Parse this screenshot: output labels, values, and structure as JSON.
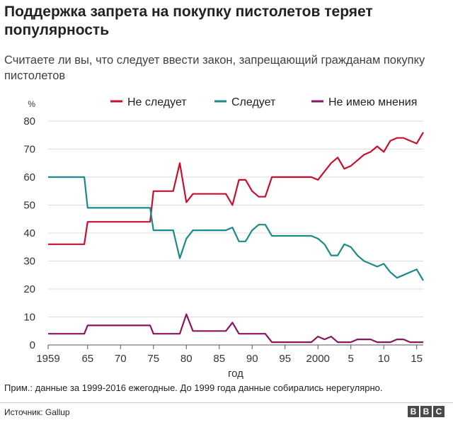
{
  "header": {
    "title": "Поддержка запрета на покупку пистолетов теряет популярность",
    "subtitle": "Считаете ли вы, что следует ввести закон, запрещающий гражданам покупку пистолетов"
  },
  "footer": {
    "note": "Прим.: данные за 1999-2016 ежегодные. До 1999 года данные собирались нерегулярно.",
    "source": "Источник: Gallup",
    "logo_letters": [
      "B",
      "B",
      "C"
    ]
  },
  "chart_data": {
    "type": "line",
    "unit_label": "%",
    "xlabel": "год",
    "ylim": [
      0,
      80
    ],
    "yticks": [
      0,
      10,
      20,
      30,
      40,
      50,
      60,
      70,
      80
    ],
    "xlim": [
      1959,
      2016
    ],
    "xticks": [
      {
        "value": 1959,
        "label": "1959"
      },
      {
        "value": 1965,
        "label": "65"
      },
      {
        "value": 1970,
        "label": "70"
      },
      {
        "value": 1975,
        "label": "75"
      },
      {
        "value": 1980,
        "label": "80"
      },
      {
        "value": 1985,
        "label": "85"
      },
      {
        "value": 1990,
        "label": "90"
      },
      {
        "value": 1995,
        "label": "95"
      },
      {
        "value": 2000,
        "label": "2000"
      },
      {
        "value": 2005,
        "label": "5"
      },
      {
        "value": 2010,
        "label": "10"
      },
      {
        "value": 2015,
        "label": "15"
      }
    ],
    "grid": true,
    "legend_position": "top",
    "series": [
      {
        "name": "Не следует",
        "color": "#c8102e",
        "points": [
          [
            1959,
            36
          ],
          [
            1964.5,
            36
          ],
          [
            1965,
            44
          ],
          [
            1974.5,
            44
          ],
          [
            1975,
            55
          ],
          [
            1978,
            55
          ],
          [
            1979,
            65
          ],
          [
            1980,
            51
          ],
          [
            1981,
            54
          ],
          [
            1986,
            54
          ],
          [
            1987,
            50
          ],
          [
            1988,
            59
          ],
          [
            1989,
            59
          ],
          [
            1990,
            55
          ],
          [
            1991,
            53
          ],
          [
            1992,
            53
          ],
          [
            1993,
            60
          ],
          [
            1999,
            60
          ],
          [
            2000,
            59
          ],
          [
            2001,
            62
          ],
          [
            2002,
            65
          ],
          [
            2003,
            67
          ],
          [
            2004,
            63
          ],
          [
            2005,
            64
          ],
          [
            2006,
            66
          ],
          [
            2007,
            68
          ],
          [
            2008,
            69
          ],
          [
            2009,
            71
          ],
          [
            2010,
            69
          ],
          [
            2011,
            73
          ],
          [
            2012,
            74
          ],
          [
            2013,
            74
          ],
          [
            2014,
            73
          ],
          [
            2015,
            72
          ],
          [
            2016,
            76
          ]
        ]
      },
      {
        "name": "Следует",
        "color": "#1a8a8a",
        "points": [
          [
            1959,
            60
          ],
          [
            1964.5,
            60
          ],
          [
            1965,
            49
          ],
          [
            1974.5,
            49
          ],
          [
            1975,
            41
          ],
          [
            1978,
            41
          ],
          [
            1979,
            31
          ],
          [
            1980,
            38
          ],
          [
            1981,
            41
          ],
          [
            1986,
            41
          ],
          [
            1987,
            42
          ],
          [
            1988,
            37
          ],
          [
            1989,
            37
          ],
          [
            1990,
            41
          ],
          [
            1991,
            43
          ],
          [
            1992,
            43
          ],
          [
            1993,
            39
          ],
          [
            1999,
            39
          ],
          [
            2000,
            38
          ],
          [
            2001,
            36
          ],
          [
            2002,
            32
          ],
          [
            2003,
            32
          ],
          [
            2004,
            36
          ],
          [
            2005,
            35
          ],
          [
            2006,
            32
          ],
          [
            2007,
            30
          ],
          [
            2008,
            29
          ],
          [
            2009,
            28
          ],
          [
            2010,
            29
          ],
          [
            2011,
            26
          ],
          [
            2012,
            24
          ],
          [
            2013,
            25
          ],
          [
            2014,
            26
          ],
          [
            2015,
            27
          ],
          [
            2016,
            23
          ]
        ]
      },
      {
        "name": "Не имею мнения",
        "color": "#8a1560",
        "points": [
          [
            1959,
            4
          ],
          [
            1964.5,
            4
          ],
          [
            1965,
            7
          ],
          [
            1974.5,
            7
          ],
          [
            1975,
            4
          ],
          [
            1978,
            4
          ],
          [
            1979,
            4
          ],
          [
            1980,
            11
          ],
          [
            1981,
            5
          ],
          [
            1986,
            5
          ],
          [
            1987,
            8
          ],
          [
            1988,
            4
          ],
          [
            1989,
            4
          ],
          [
            1990,
            4
          ],
          [
            1991,
            4
          ],
          [
            1992,
            4
          ],
          [
            1993,
            1
          ],
          [
            1999,
            1
          ],
          [
            2000,
            3
          ],
          [
            2001,
            2
          ],
          [
            2002,
            3
          ],
          [
            2003,
            1
          ],
          [
            2004,
            1
          ],
          [
            2005,
            1
          ],
          [
            2006,
            2
          ],
          [
            2007,
            2
          ],
          [
            2008,
            2
          ],
          [
            2009,
            1
          ],
          [
            2010,
            1
          ],
          [
            2011,
            1
          ],
          [
            2012,
            2
          ],
          [
            2013,
            2
          ],
          [
            2014,
            1
          ],
          [
            2015,
            1
          ],
          [
            2016,
            1
          ]
        ]
      }
    ]
  }
}
